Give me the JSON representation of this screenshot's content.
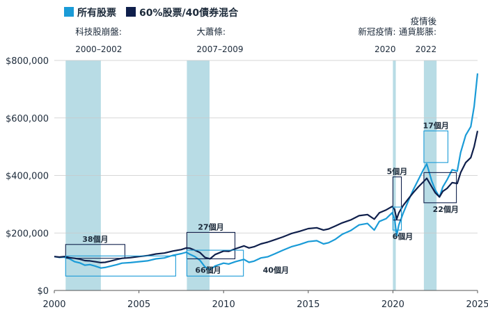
{
  "chart_data": {
    "type": "line",
    "title": "",
    "xlabel": "",
    "ylabel": "",
    "xlim": [
      2000,
      2025
    ],
    "ylim": [
      0,
      800000
    ],
    "x_ticks": [
      "2000",
      "2005",
      "2010",
      "2015",
      "2020",
      "2025"
    ],
    "y_ticks": [
      "$0",
      "$200,000",
      "$400,000",
      "$600,000",
      "$800,000"
    ],
    "y_tick_values": [
      0,
      200000,
      400000,
      600000,
      800000
    ],
    "x_tick_values": [
      2000,
      2005,
      2010,
      2015,
      2020,
      2025
    ],
    "grid": true,
    "legend_position": "top-left",
    "series": [
      {
        "name": "所有股票",
        "color": "#1a9bd7",
        "points": [
          [
            2000.0,
            118000
          ],
          [
            2000.3,
            115000
          ],
          [
            2000.6,
            116000
          ],
          [
            2000.9,
            110000
          ],
          [
            2001.2,
            100000
          ],
          [
            2001.5,
            96000
          ],
          [
            2001.8,
            88000
          ],
          [
            2002.1,
            90000
          ],
          [
            2002.4,
            85000
          ],
          [
            2002.75,
            78000
          ],
          [
            2003.0,
            80000
          ],
          [
            2003.3,
            84000
          ],
          [
            2003.7,
            90000
          ],
          [
            2004.0,
            95000
          ],
          [
            2004.5,
            97000
          ],
          [
            2005.0,
            100000
          ],
          [
            2005.5,
            103000
          ],
          [
            2006.0,
            110000
          ],
          [
            2006.5,
            113000
          ],
          [
            2007.0,
            122000
          ],
          [
            2007.5,
            128000
          ],
          [
            2007.8,
            133000
          ],
          [
            2008.0,
            126000
          ],
          [
            2008.3,
            118000
          ],
          [
            2008.6,
            105000
          ],
          [
            2008.9,
            82000
          ],
          [
            2009.2,
            72000
          ],
          [
            2009.5,
            85000
          ],
          [
            2010.0,
            95000
          ],
          [
            2010.3,
            92000
          ],
          [
            2010.7,
            100000
          ],
          [
            2011.2,
            108000
          ],
          [
            2011.5,
            98000
          ],
          [
            2011.8,
            102000
          ],
          [
            2012.2,
            113000
          ],
          [
            2012.6,
            117000
          ],
          [
            2013.0,
            127000
          ],
          [
            2013.5,
            140000
          ],
          [
            2014.0,
            152000
          ],
          [
            2014.5,
            160000
          ],
          [
            2015.0,
            170000
          ],
          [
            2015.5,
            173000
          ],
          [
            2015.9,
            162000
          ],
          [
            2016.2,
            166000
          ],
          [
            2016.6,
            178000
          ],
          [
            2017.0,
            195000
          ],
          [
            2017.5,
            208000
          ],
          [
            2018.0,
            228000
          ],
          [
            2018.5,
            233000
          ],
          [
            2018.9,
            210000
          ],
          [
            2019.2,
            240000
          ],
          [
            2019.6,
            250000
          ],
          [
            2019.95,
            270000
          ],
          [
            2020.1,
            250000
          ],
          [
            2020.22,
            190000
          ],
          [
            2020.35,
            228000
          ],
          [
            2020.6,
            268000
          ],
          [
            2020.9,
            310000
          ],
          [
            2021.2,
            350000
          ],
          [
            2021.5,
            385000
          ],
          [
            2021.8,
            420000
          ],
          [
            2022.0,
            440000
          ],
          [
            2022.3,
            380000
          ],
          [
            2022.5,
            350000
          ],
          [
            2022.75,
            325000
          ],
          [
            2022.95,
            360000
          ],
          [
            2023.2,
            385000
          ],
          [
            2023.5,
            420000
          ],
          [
            2023.8,
            415000
          ],
          [
            2024.0,
            480000
          ],
          [
            2024.3,
            540000
          ],
          [
            2024.6,
            570000
          ],
          [
            2024.8,
            640000
          ],
          [
            2025.0,
            755000
          ]
        ]
      },
      {
        "name": "60%股票/40債券混合",
        "color": "#0f1f4b",
        "points": [
          [
            2000.0,
            118000
          ],
          [
            2000.3,
            116000
          ],
          [
            2000.6,
            118000
          ],
          [
            2000.9,
            114000
          ],
          [
            2001.2,
            112000
          ],
          [
            2001.5,
            109000
          ],
          [
            2001.8,
            104000
          ],
          [
            2002.1,
            103000
          ],
          [
            2002.4,
            100000
          ],
          [
            2002.75,
            97000
          ],
          [
            2003.0,
            98000
          ],
          [
            2003.3,
            102000
          ],
          [
            2003.7,
            108000
          ],
          [
            2004.0,
            112000
          ],
          [
            2004.5,
            114000
          ],
          [
            2005.0,
            118000
          ],
          [
            2005.5,
            121000
          ],
          [
            2006.0,
            127000
          ],
          [
            2006.5,
            130000
          ],
          [
            2007.0,
            137000
          ],
          [
            2007.5,
            142000
          ],
          [
            2007.8,
            148000
          ],
          [
            2008.0,
            147000
          ],
          [
            2008.3,
            140000
          ],
          [
            2008.6,
            132000
          ],
          [
            2008.9,
            115000
          ],
          [
            2009.2,
            110000
          ],
          [
            2009.5,
            125000
          ],
          [
            2010.0,
            137000
          ],
          [
            2010.3,
            136000
          ],
          [
            2010.7,
            145000
          ],
          [
            2011.2,
            155000
          ],
          [
            2011.5,
            148000
          ],
          [
            2011.8,
            152000
          ],
          [
            2012.2,
            162000
          ],
          [
            2012.6,
            168000
          ],
          [
            2013.0,
            176000
          ],
          [
            2013.5,
            186000
          ],
          [
            2014.0,
            198000
          ],
          [
            2014.5,
            206000
          ],
          [
            2015.0,
            215000
          ],
          [
            2015.5,
            218000
          ],
          [
            2015.9,
            210000
          ],
          [
            2016.2,
            214000
          ],
          [
            2016.6,
            224000
          ],
          [
            2017.0,
            235000
          ],
          [
            2017.5,
            245000
          ],
          [
            2018.0,
            260000
          ],
          [
            2018.5,
            264000
          ],
          [
            2018.9,
            248000
          ],
          [
            2019.2,
            270000
          ],
          [
            2019.6,
            280000
          ],
          [
            2019.95,
            292000
          ],
          [
            2020.1,
            282000
          ],
          [
            2020.22,
            248000
          ],
          [
            2020.35,
            270000
          ],
          [
            2020.6,
            295000
          ],
          [
            2020.9,
            318000
          ],
          [
            2021.2,
            340000
          ],
          [
            2021.5,
            360000
          ],
          [
            2021.8,
            378000
          ],
          [
            2022.0,
            390000
          ],
          [
            2022.3,
            360000
          ],
          [
            2022.5,
            340000
          ],
          [
            2022.75,
            325000
          ],
          [
            2022.95,
            345000
          ],
          [
            2023.2,
            355000
          ],
          [
            2023.5,
            375000
          ],
          [
            2023.8,
            372000
          ],
          [
            2024.0,
            410000
          ],
          [
            2024.3,
            445000
          ],
          [
            2024.6,
            462000
          ],
          [
            2024.8,
            500000
          ],
          [
            2025.0,
            555000
          ]
        ]
      }
    ],
    "shaded_periods": [
      {
        "start": 2000.67,
        "end": 2002.75,
        "label": "科技股崩盤:",
        "dates": "2000–2002"
      },
      {
        "start": 2007.83,
        "end": 2009.17,
        "label": "大蕭條:",
        "dates": "2007–2009"
      },
      {
        "start": 2020.0,
        "end": 2020.17,
        "label": "新冠疫情:",
        "dates": "2020"
      },
      {
        "start": 2021.83,
        "end": 2022.58,
        "label": "疫情後\n通貨膨脹:",
        "dates": "2022"
      }
    ],
    "recovery_boxes": [
      {
        "series": 1,
        "x0": 2000.67,
        "x1": 2004.17,
        "y0": 112000,
        "y1": 160000,
        "label": "38個月",
        "label_pos": "top"
      },
      {
        "series": 0,
        "x0": 2000.67,
        "x1": 2007.17,
        "y0": 50000,
        "y1": 120000,
        "label": "66個月",
        "label_pos": "bottom-right"
      },
      {
        "series": 1,
        "x0": 2007.83,
        "x1": 2010.67,
        "y0": 110000,
        "y1": 202000,
        "label": "27個月",
        "label_pos": "top"
      },
      {
        "series": 0,
        "x0": 2007.83,
        "x1": 2011.17,
        "y0": 50000,
        "y1": 140000,
        "label": "40個月",
        "label_pos": "bottom-right"
      },
      {
        "series": 1,
        "x0": 2020.0,
        "x1": 2020.5,
        "y0": 245000,
        "y1": 395000,
        "label": "5個月",
        "label_pos": "top"
      },
      {
        "series": 0,
        "x0": 2020.0,
        "x1": 2020.5,
        "y0": 210000,
        "y1": 290000,
        "label": "6個月",
        "label_pos": "bottom"
      },
      {
        "series": 0,
        "x0": 2021.83,
        "x1": 2023.25,
        "y0": 445000,
        "y1": 555000,
        "label": "17個月",
        "label_pos": "top"
      },
      {
        "series": 1,
        "x0": 2021.83,
        "x1": 2023.75,
        "y0": 305000,
        "y1": 410000,
        "label": "22個月",
        "label_pos": "bottom"
      }
    ]
  }
}
